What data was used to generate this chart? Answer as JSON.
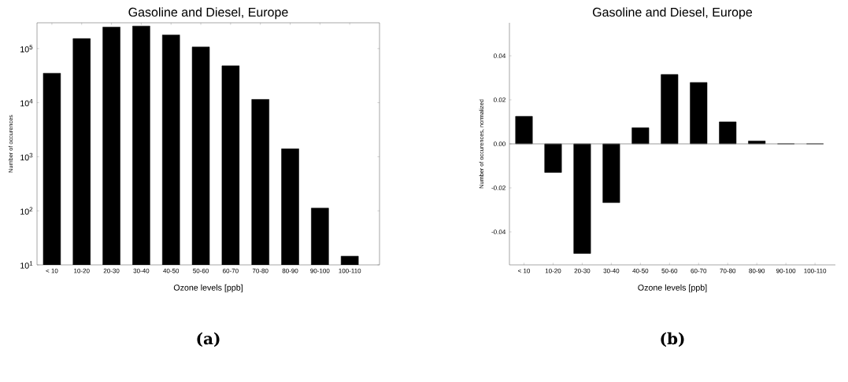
{
  "chart_data": [
    {
      "type": "bar",
      "title": "Gasoline and Diesel, Europe",
      "xlabel": "Ozone levels [ppb]",
      "ylabel": "Number of occurences",
      "log": "y",
      "color": "#000000",
      "categories": [
        "< 10",
        "10-20",
        "20-30",
        "30-40",
        "40-50",
        "50-60",
        "60-70",
        "70-80",
        "80-90",
        "90-100",
        "100-110"
      ],
      "values": [
        35000,
        153000,
        250000,
        261000,
        179000,
        107000,
        48000,
        11500,
        1400,
        112,
        14.5
      ],
      "ylim": [
        10,
        300000
      ],
      "yticks": [
        {
          "value": 10,
          "label": "10$^{1}$"
        },
        {
          "value": 100,
          "label": "10$^{2}$"
        },
        {
          "value": 1000,
          "label": "10$^{3}$"
        },
        {
          "value": 10000,
          "label": "10$^{4}$"
        },
        {
          "value": 100000,
          "label": "10$^{5}$"
        }
      ],
      "annotations": [
        "(a)"
      ]
    },
    {
      "type": "bar",
      "title": "Gasoline and Diesel, Europe",
      "xlabel": "Ozone levels [ppb]",
      "ylabel": "Number of occurences, normalized",
      "color": "#000000",
      "categories": [
        "< 10",
        "10-20",
        "20-30",
        "30-40",
        "40-50",
        "50-60",
        "60-70",
        "70-80",
        "80-90",
        "90-100",
        "100-110"
      ],
      "values": [
        0.0125,
        -0.013,
        -0.0498,
        -0.0267,
        0.0073,
        0.0315,
        0.0279,
        0.01,
        0.0013,
        0,
        0
      ],
      "ylim": [
        -0.055,
        0.055
      ],
      "yticks": [
        {
          "value": -0.04,
          "label": "-0.04"
        },
        {
          "value": -0.02,
          "label": "-0.02"
        },
        {
          "value": 0,
          "label": "0.00"
        },
        {
          "value": 0.02,
          "label": "0.02"
        },
        {
          "value": 0.04,
          "label": "0.04"
        }
      ],
      "ref_lines": [
        {
          "axis": "y",
          "value": 0,
          "color": "#808080"
        }
      ],
      "annotations": [
        "(b)"
      ]
    }
  ]
}
